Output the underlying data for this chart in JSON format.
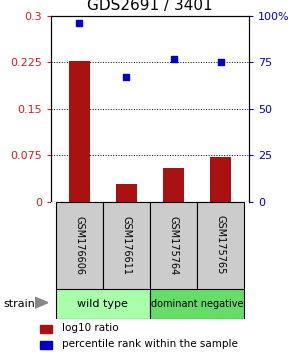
{
  "title": "GDS2691 / 3401",
  "samples": [
    "GSM176606",
    "GSM176611",
    "GSM175764",
    "GSM175765"
  ],
  "log10_ratio": [
    0.228,
    0.028,
    0.054,
    0.073
  ],
  "percentile_rank": [
    96,
    67,
    77,
    75
  ],
  "bar_color": "#aa1111",
  "square_color": "#0000cc",
  "ylim_left": [
    0,
    0.3
  ],
  "ylim_right": [
    0,
    100
  ],
  "yticks_left": [
    0,
    0.075,
    0.15,
    0.225,
    0.3
  ],
  "yticks_right": [
    0,
    25,
    50,
    75,
    100
  ],
  "ytick_labels_left": [
    "0",
    "0.075",
    "0.15",
    "0.225",
    "0.3"
  ],
  "ytick_labels_right": [
    "0",
    "25",
    "50",
    "75",
    "100%"
  ],
  "groups": [
    {
      "label": "wild type",
      "samples": [
        0,
        1
      ],
      "color": "#aaffaa"
    },
    {
      "label": "dominant negative",
      "samples": [
        2,
        3
      ],
      "color": "#66dd66"
    }
  ],
  "strain_label": "strain",
  "legend_bar_label": "log10 ratio",
  "legend_square_label": "percentile rank within the sample",
  "bar_width": 0.45,
  "background_color": "#ffffff",
  "axes_label_color_left": "#cc2222",
  "axes_label_color_right": "#0000cc",
  "sample_box_color": "#cccccc",
  "title_fontsize": 11,
  "tick_fontsize": 8,
  "legend_fontsize": 7.5
}
